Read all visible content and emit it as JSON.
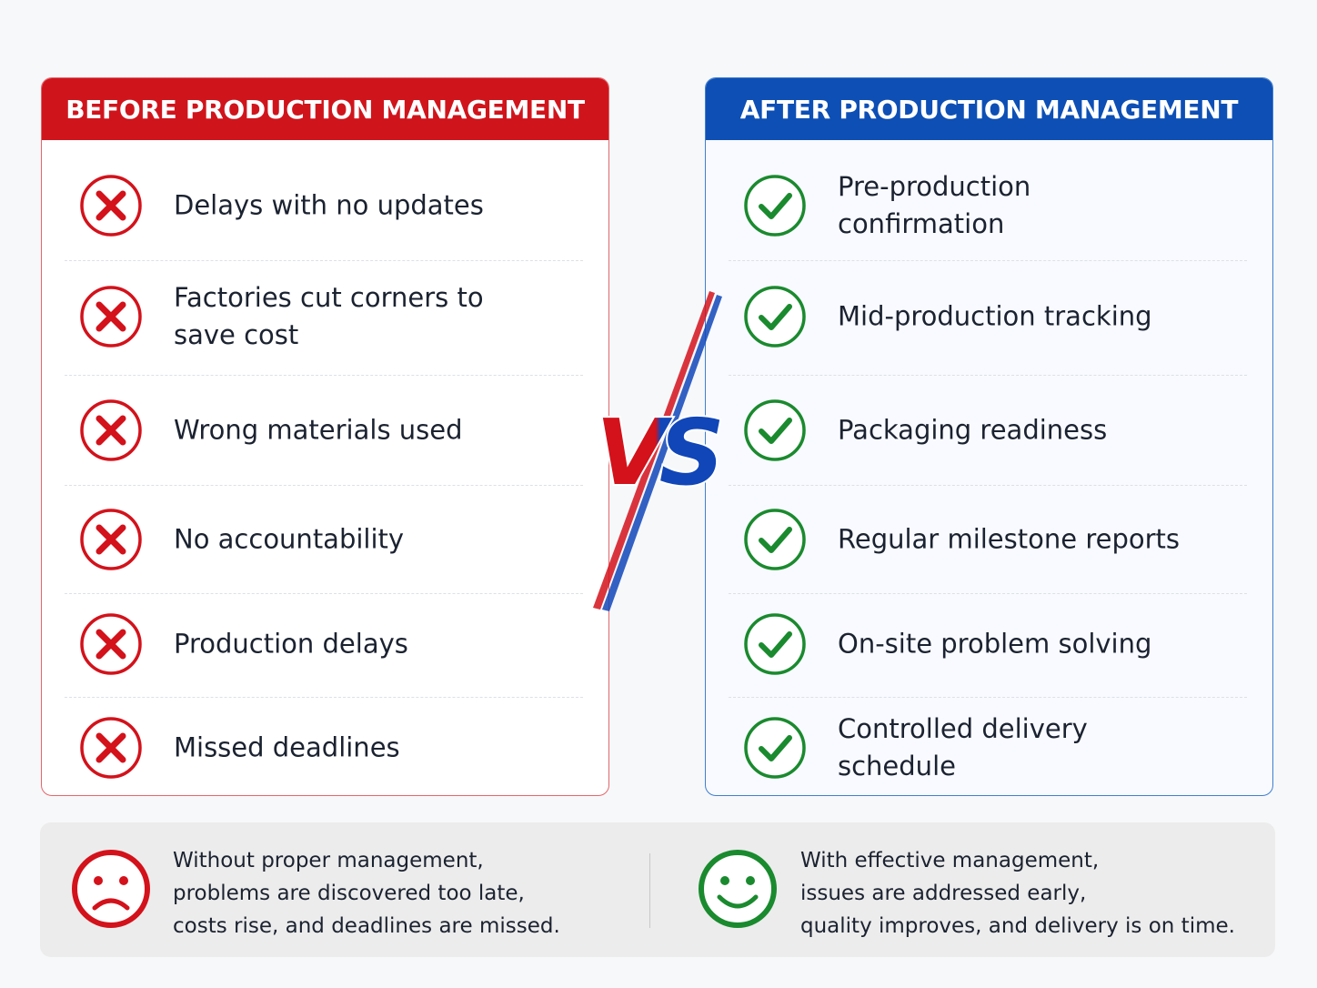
{
  "before": {
    "title": "BEFORE PRODUCTION MANAGEMENT",
    "items": [
      "Delays with no updates",
      "Factories cut corners to save cost",
      "Wrong materials used",
      "No accountability",
      "Production delays",
      "Missed deadlines"
    ]
  },
  "after": {
    "title": "AFTER PRODUCTION MANAGEMENT",
    "items": [
      "Pre-production confirmation",
      "Mid-production tracking",
      "Packaging readiness",
      "Regular milestone reports",
      "On-site problem solving",
      "Controlled delivery schedule"
    ]
  },
  "vs": "VS",
  "summary": {
    "before": [
      "Without proper management,",
      "problems are discovered too late,",
      "costs rise, and deadlines are missed."
    ],
    "after": [
      "With effective management,",
      "issues are addressed early,",
      "quality improves, and delivery is on time."
    ]
  }
}
